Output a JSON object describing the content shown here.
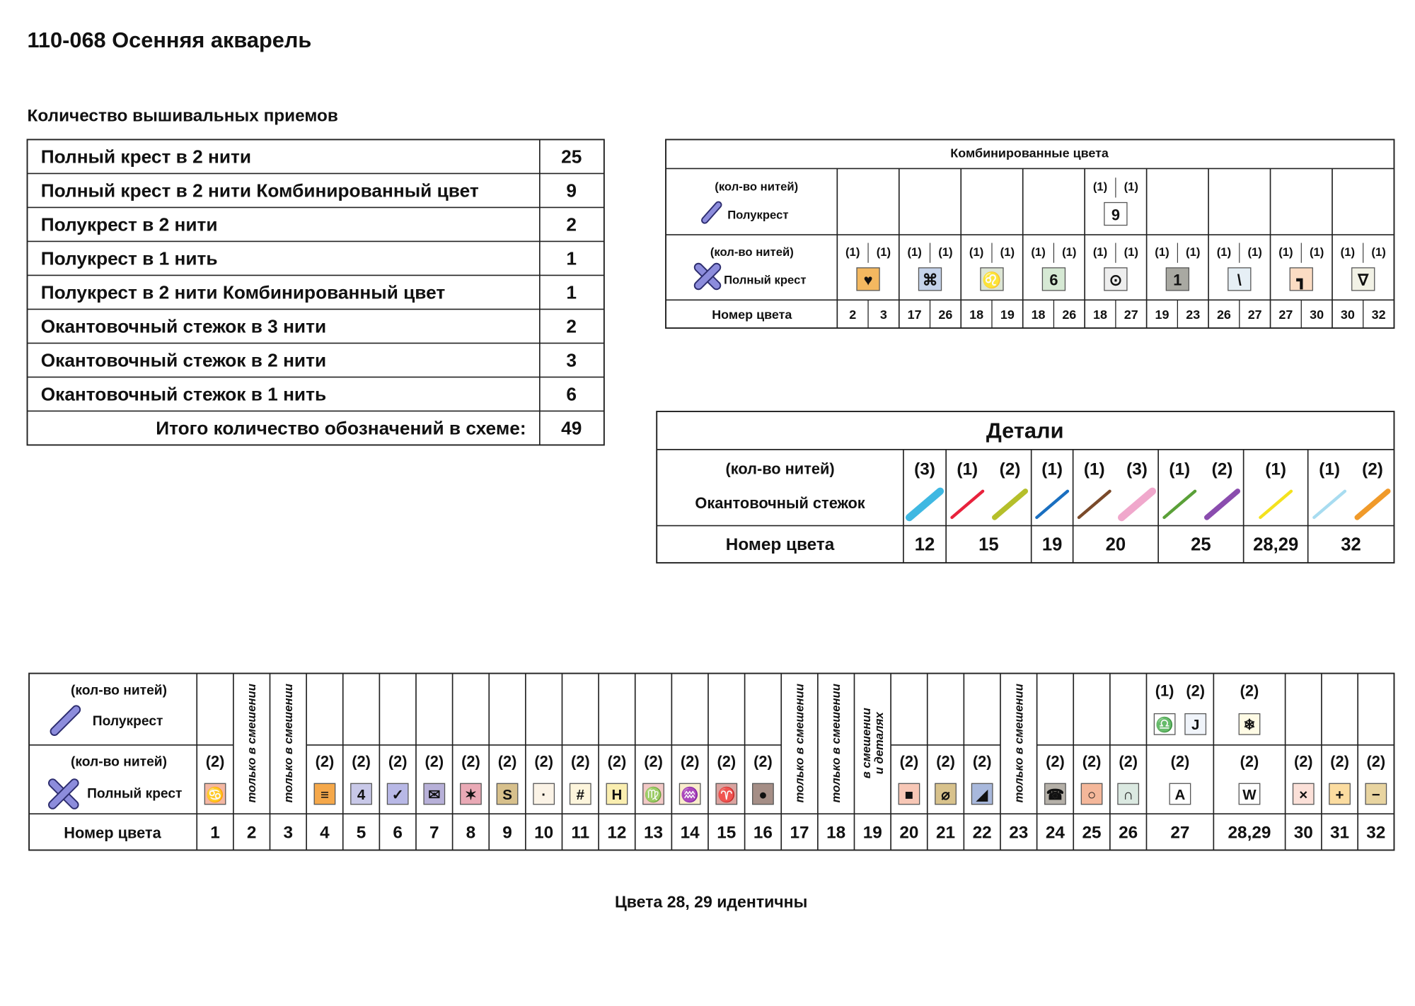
{
  "title": "110-068 Осенняя акварель",
  "techniques": {
    "heading": "Количество вышивальных приемов",
    "rows": [
      {
        "label": "Полный крест в 2 нити",
        "count": 25
      },
      {
        "label": "Полный крест в 2 нити Комбинированный цвет",
        "count": 9
      },
      {
        "label": "Полукрест в 2 нити",
        "count": 2
      },
      {
        "label": "Полукрест в 1 нить",
        "count": 1
      },
      {
        "label": "Полукрест в 2 нити Комбинированный цвет",
        "count": 1
      },
      {
        "label": "Окантовочный стежок в 3 нити",
        "count": 2
      },
      {
        "label": "Окантовочный стежок в 2 нити",
        "count": 3
      },
      {
        "label": "Окантовочный стежок в 1 нить",
        "count": 6
      }
    ],
    "total": {
      "label": "Итого количество обозначений в схеме:",
      "count": 49
    }
  },
  "combined": {
    "title": "Комбинированные цвета",
    "half_threads_label": "(кол-во нитей)",
    "half_label": "Полукрест",
    "full_threads_label": "(кол-во нитей)",
    "full_label": "Полный крест",
    "number_label": "Номер цвета",
    "groups": [
      {
        "numbers": [
          2,
          3
        ],
        "full": {
          "threads": [
            "(1)",
            "(1)"
          ],
          "symbol": "♥",
          "bg": "#f3b860",
          "fg": "#111111"
        }
      },
      {
        "numbers": [
          17,
          26
        ],
        "full": {
          "threads": [
            "(1)",
            "(1)"
          ],
          "symbol": "⌘",
          "bg": "#c5d3ea",
          "fg": "#111111"
        }
      },
      {
        "numbers": [
          18,
          19
        ],
        "full": {
          "threads": [
            "(1)",
            "(1)"
          ],
          "symbol": "♌",
          "bg": "#dde6d5",
          "fg": "#111111"
        }
      },
      {
        "numbers": [
          18,
          26
        ],
        "full": {
          "threads": [
            "(1)",
            "(1)"
          ],
          "symbol": "6",
          "bg": "#d6e9d4",
          "fg": "#111111"
        }
      },
      {
        "numbers": [
          18,
          27
        ],
        "half": {
          "threads": [
            "(1)",
            "(1)"
          ],
          "symbol": "9",
          "bg": "#ffffff",
          "fg": "#0b7a3b"
        },
        "full": {
          "threads": [
            "(1)",
            "(1)"
          ],
          "symbol": "⊙",
          "bg": "#eeeeee",
          "fg": "#111111"
        }
      },
      {
        "numbers": [
          19,
          23
        ],
        "full": {
          "threads": [
            "(1)",
            "(1)"
          ],
          "symbol": "1",
          "bg": "#a9a9a2",
          "fg": "#111111"
        }
      },
      {
        "numbers": [
          26,
          27
        ],
        "full": {
          "threads": [
            "(1)",
            "(1)"
          ],
          "symbol": "\\",
          "bg": "#e6eff5",
          "fg": "#111111"
        }
      },
      {
        "numbers": [
          27,
          30
        ],
        "full": {
          "threads": [
            "(1)",
            "(1)"
          ],
          "symbol": "┓",
          "bg": "#fbdcc3",
          "fg": "#111111"
        }
      },
      {
        "numbers": [
          30,
          32
        ],
        "full": {
          "threads": [
            "(1)",
            "(1)"
          ],
          "symbol": "∇",
          "bg": "#f2f2e6",
          "fg": "#111111"
        }
      }
    ]
  },
  "details": {
    "title": "Детали",
    "threads_label": "(кол-во нитей)",
    "stitch_label": "Окантовочный стежок",
    "number_label": "Номер цвета",
    "groups": [
      {
        "number": 12,
        "threads": [
          "(3)"
        ],
        "colors": [
          "#3fb8e2"
        ]
      },
      {
        "number": 15,
        "threads": [
          "(1)",
          "(2)"
        ],
        "colors": [
          "#e8223c",
          "#b5bf2a"
        ]
      },
      {
        "number": 19,
        "threads": [
          "(1)"
        ],
        "colors": [
          "#1a6fc0"
        ]
      },
      {
        "number": 20,
        "threads": [
          "(1)",
          "(3)"
        ],
        "colors": [
          "#7a4a2a",
          "#f0a8cc"
        ]
      },
      {
        "number": 25,
        "threads": [
          "(1)",
          "(2)"
        ],
        "colors": [
          "#5aa038",
          "#8a4cae"
        ]
      },
      {
        "number": "28,29",
        "threads": [
          "(1)"
        ],
        "colors": [
          "#f4e21e"
        ]
      },
      {
        "number": 32,
        "threads": [
          "(1)",
          "(2)"
        ],
        "colors": [
          "#a8dcf0",
          "#f09a2a"
        ]
      }
    ]
  },
  "legend": {
    "half_threads_label": "(кол-во нитей)",
    "half_label": "Полукрест",
    "full_threads_label": "(кол-во нитей)",
    "full_label": "Полный крест",
    "number_label": "Номер цвета",
    "columns": [
      {
        "number": 1,
        "full": {
          "threads": "(2)",
          "symbol": "♋",
          "bg": "#f3b7a3",
          "fg": "#111111"
        }
      },
      {
        "number": 2,
        "note": [
          "только в смешении"
        ]
      },
      {
        "number": 3,
        "note": [
          "только в смешении"
        ]
      },
      {
        "number": 4,
        "full": {
          "threads": "(2)",
          "symbol": "≡",
          "bg": "#f5a84a",
          "fg": "#111111"
        }
      },
      {
        "number": 5,
        "full": {
          "threads": "(2)",
          "symbol": "4",
          "bg": "#c8c8e8",
          "fg": "#111111"
        }
      },
      {
        "number": 6,
        "full": {
          "threads": "(2)",
          "symbol": "✓",
          "bg": "#b8b8e6",
          "fg": "#111111"
        }
      },
      {
        "number": 7,
        "full": {
          "threads": "(2)",
          "symbol": "✉",
          "bg": "#b7b0d8",
          "fg": "#111111"
        }
      },
      {
        "number": 8,
        "full": {
          "threads": "(2)",
          "symbol": "✶",
          "bg": "#e9a9b5",
          "fg": "#111111"
        }
      },
      {
        "number": 9,
        "full": {
          "threads": "(2)",
          "symbol": "S",
          "bg": "#d7c08c",
          "fg": "#111111"
        }
      },
      {
        "number": 10,
        "full": {
          "threads": "(2)",
          "symbol": "·",
          "bg": "#fbf3e6",
          "fg": "#111111"
        }
      },
      {
        "number": 11,
        "full": {
          "threads": "(2)",
          "symbol": "#",
          "bg": "#fdf5dc",
          "fg": "#111111"
        }
      },
      {
        "number": 12,
        "full": {
          "threads": "(2)",
          "symbol": "H",
          "bg": "#faeeb0",
          "fg": "#111111"
        }
      },
      {
        "number": 13,
        "full": {
          "threads": "(2)",
          "symbol": "♍",
          "bg": "#f2c9c6",
          "fg": "#111111"
        }
      },
      {
        "number": 14,
        "full": {
          "threads": "(2)",
          "symbol": "♒",
          "bg": "#f9edcc",
          "fg": "#111111"
        }
      },
      {
        "number": 15,
        "full": {
          "threads": "(2)",
          "symbol": "♈",
          "bg": "#d9a39f",
          "fg": "#111111"
        }
      },
      {
        "number": 16,
        "full": {
          "threads": "(2)",
          "symbol": "●",
          "bg": "#a58e86",
          "fg": "#111111"
        }
      },
      {
        "number": 17,
        "note": [
          "только в смешении"
        ]
      },
      {
        "number": 18,
        "note": [
          "только в смешении"
        ]
      },
      {
        "number": 19,
        "note": [
          "в смешении",
          "и деталях"
        ]
      },
      {
        "number": 20,
        "full": {
          "threads": "(2)",
          "symbol": "■",
          "bg": "#f7c7b6",
          "fg": "#111111"
        }
      },
      {
        "number": 21,
        "full": {
          "threads": "(2)",
          "symbol": "⌀",
          "bg": "#d8c28c",
          "fg": "#111111"
        }
      },
      {
        "number": 22,
        "full": {
          "threads": "(2)",
          "symbol": "◢",
          "bg": "#a8b8dc",
          "fg": "#111111"
        }
      },
      {
        "number": 23,
        "note": [
          "только в смешении"
        ]
      },
      {
        "number": 24,
        "full": {
          "threads": "(2)",
          "symbol": "☎",
          "bg": "#b5b0a8",
          "fg": "#111111"
        }
      },
      {
        "number": 25,
        "full": {
          "threads": "(2)",
          "symbol": "○",
          "bg": "#f4b79a",
          "fg": "#111111"
        }
      },
      {
        "number": 26,
        "full": {
          "threads": "(2)",
          "symbol": "∩",
          "bg": "#dbe9e1",
          "fg": "#111111"
        }
      },
      {
        "number": 27,
        "half": [
          {
            "threads": "(1)",
            "symbol": "♎",
            "bg": "#ffffff",
            "fg": "#e0408a"
          },
          {
            "threads": "(2)",
            "symbol": "J",
            "bg": "#f0f4fa",
            "fg": "#8cc8ee"
          }
        ],
        "full": {
          "threads": "(2)",
          "symbol": "A",
          "bg": "#ffffff",
          "fg": "#111111"
        }
      },
      {
        "number": "28,29",
        "half": [
          {
            "threads": "(2)",
            "symbol": "❄",
            "bg": "#fffbe5",
            "fg": "#f0c040"
          }
        ],
        "full": {
          "threads": "(2)",
          "symbol": "W",
          "bg": "#ffffff",
          "fg": "#111111"
        }
      },
      {
        "number": 30,
        "full": {
          "threads": "(2)",
          "symbol": "×",
          "bg": "#fbe0d8",
          "fg": "#111111"
        }
      },
      {
        "number": 31,
        "full": {
          "threads": "(2)",
          "symbol": "+",
          "bg": "#fbdca0",
          "fg": "#111111"
        }
      },
      {
        "number": 32,
        "full": {
          "threads": "(2)",
          "symbol": "−",
          "bg": "#e8d4a0",
          "fg": "#111111"
        }
      }
    ]
  },
  "footer": "Цвета 28, 29 идентичны"
}
